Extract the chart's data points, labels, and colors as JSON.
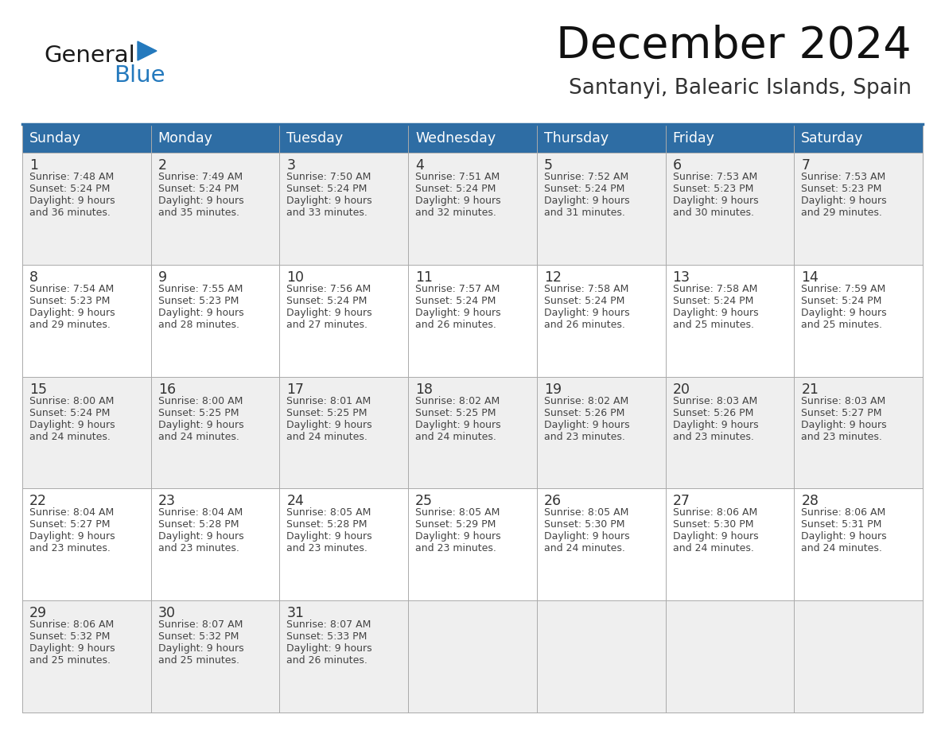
{
  "title": "December 2024",
  "subtitle": "Santanyi, Balearic Islands, Spain",
  "header_bg_color": "#2E6DA4",
  "header_text_color": "#FFFFFF",
  "day_names": [
    "Sunday",
    "Monday",
    "Tuesday",
    "Wednesday",
    "Thursday",
    "Friday",
    "Saturday"
  ],
  "row_bg_colors": [
    "#EFEFEF",
    "#FFFFFF"
  ],
  "cell_border_color": "#AAAAAA",
  "day_num_color": "#333333",
  "info_text_color": "#444444",
  "title_color": "#111111",
  "subtitle_color": "#333333",
  "logo_general_color": "#1A1A1A",
  "logo_blue_color": "#2479BD",
  "weeks": [
    [
      {
        "day": 1,
        "sunrise": "7:48 AM",
        "sunset": "5:24 PM",
        "daylight": "9 hours\nand 36 minutes."
      },
      {
        "day": 2,
        "sunrise": "7:49 AM",
        "sunset": "5:24 PM",
        "daylight": "9 hours\nand 35 minutes."
      },
      {
        "day": 3,
        "sunrise": "7:50 AM",
        "sunset": "5:24 PM",
        "daylight": "9 hours\nand 33 minutes."
      },
      {
        "day": 4,
        "sunrise": "7:51 AM",
        "sunset": "5:24 PM",
        "daylight": "9 hours\nand 32 minutes."
      },
      {
        "day": 5,
        "sunrise": "7:52 AM",
        "sunset": "5:24 PM",
        "daylight": "9 hours\nand 31 minutes."
      },
      {
        "day": 6,
        "sunrise": "7:53 AM",
        "sunset": "5:23 PM",
        "daylight": "9 hours\nand 30 minutes."
      },
      {
        "day": 7,
        "sunrise": "7:53 AM",
        "sunset": "5:23 PM",
        "daylight": "9 hours\nand 29 minutes."
      }
    ],
    [
      {
        "day": 8,
        "sunrise": "7:54 AM",
        "sunset": "5:23 PM",
        "daylight": "9 hours\nand 29 minutes."
      },
      {
        "day": 9,
        "sunrise": "7:55 AM",
        "sunset": "5:23 PM",
        "daylight": "9 hours\nand 28 minutes."
      },
      {
        "day": 10,
        "sunrise": "7:56 AM",
        "sunset": "5:24 PM",
        "daylight": "9 hours\nand 27 minutes."
      },
      {
        "day": 11,
        "sunrise": "7:57 AM",
        "sunset": "5:24 PM",
        "daylight": "9 hours\nand 26 minutes."
      },
      {
        "day": 12,
        "sunrise": "7:58 AM",
        "sunset": "5:24 PM",
        "daylight": "9 hours\nand 26 minutes."
      },
      {
        "day": 13,
        "sunrise": "7:58 AM",
        "sunset": "5:24 PM",
        "daylight": "9 hours\nand 25 minutes."
      },
      {
        "day": 14,
        "sunrise": "7:59 AM",
        "sunset": "5:24 PM",
        "daylight": "9 hours\nand 25 minutes."
      }
    ],
    [
      {
        "day": 15,
        "sunrise": "8:00 AM",
        "sunset": "5:24 PM",
        "daylight": "9 hours\nand 24 minutes."
      },
      {
        "day": 16,
        "sunrise": "8:00 AM",
        "sunset": "5:25 PM",
        "daylight": "9 hours\nand 24 minutes."
      },
      {
        "day": 17,
        "sunrise": "8:01 AM",
        "sunset": "5:25 PM",
        "daylight": "9 hours\nand 24 minutes."
      },
      {
        "day": 18,
        "sunrise": "8:02 AM",
        "sunset": "5:25 PM",
        "daylight": "9 hours\nand 24 minutes."
      },
      {
        "day": 19,
        "sunrise": "8:02 AM",
        "sunset": "5:26 PM",
        "daylight": "9 hours\nand 23 minutes."
      },
      {
        "day": 20,
        "sunrise": "8:03 AM",
        "sunset": "5:26 PM",
        "daylight": "9 hours\nand 23 minutes."
      },
      {
        "day": 21,
        "sunrise": "8:03 AM",
        "sunset": "5:27 PM",
        "daylight": "9 hours\nand 23 minutes."
      }
    ],
    [
      {
        "day": 22,
        "sunrise": "8:04 AM",
        "sunset": "5:27 PM",
        "daylight": "9 hours\nand 23 minutes."
      },
      {
        "day": 23,
        "sunrise": "8:04 AM",
        "sunset": "5:28 PM",
        "daylight": "9 hours\nand 23 minutes."
      },
      {
        "day": 24,
        "sunrise": "8:05 AM",
        "sunset": "5:28 PM",
        "daylight": "9 hours\nand 23 minutes."
      },
      {
        "day": 25,
        "sunrise": "8:05 AM",
        "sunset": "5:29 PM",
        "daylight": "9 hours\nand 23 minutes."
      },
      {
        "day": 26,
        "sunrise": "8:05 AM",
        "sunset": "5:30 PM",
        "daylight": "9 hours\nand 24 minutes."
      },
      {
        "day": 27,
        "sunrise": "8:06 AM",
        "sunset": "5:30 PM",
        "daylight": "9 hours\nand 24 minutes."
      },
      {
        "day": 28,
        "sunrise": "8:06 AM",
        "sunset": "5:31 PM",
        "daylight": "9 hours\nand 24 minutes."
      }
    ],
    [
      {
        "day": 29,
        "sunrise": "8:06 AM",
        "sunset": "5:32 PM",
        "daylight": "9 hours\nand 25 minutes."
      },
      {
        "day": 30,
        "sunrise": "8:07 AM",
        "sunset": "5:32 PM",
        "daylight": "9 hours\nand 25 minutes."
      },
      {
        "day": 31,
        "sunrise": "8:07 AM",
        "sunset": "5:33 PM",
        "daylight": "9 hours\nand 26 minutes."
      },
      null,
      null,
      null,
      null
    ]
  ],
  "fig_width": 11.88,
  "fig_height": 9.18,
  "dpi": 100
}
